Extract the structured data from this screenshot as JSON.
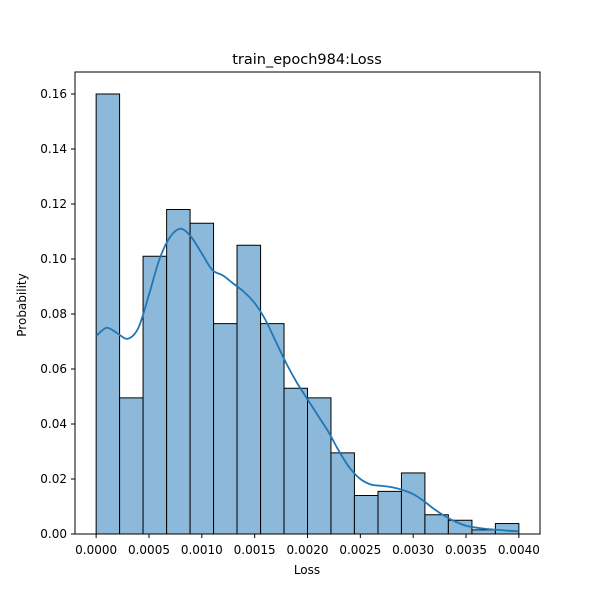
{
  "chart_data": {
    "type": "bar",
    "title": "train_epoch984:Loss",
    "xlabel": "Loss",
    "ylabel": "Probability",
    "xlim": [
      -0.0002,
      0.0042
    ],
    "ylim": [
      0,
      0.168
    ],
    "x_ticks": [
      0.0,
      0.0005,
      0.001,
      0.0015,
      0.002,
      0.0025,
      0.003,
      0.0035,
      0.004
    ],
    "x_tick_labels": [
      "0.0000",
      "0.0005",
      "0.0010",
      "0.0015",
      "0.0020",
      "0.0025",
      "0.0030",
      "0.0035",
      "0.0040"
    ],
    "y_ticks": [
      0.0,
      0.02,
      0.04,
      0.06,
      0.08,
      0.1,
      0.12,
      0.14,
      0.16
    ],
    "y_tick_labels": [
      "0.00",
      "0.02",
      "0.04",
      "0.06",
      "0.08",
      "0.10",
      "0.12",
      "0.14",
      "0.16"
    ],
    "bin_edges": [
      0.0,
      0.000222,
      0.000444,
      0.000667,
      0.000889,
      0.001111,
      0.001333,
      0.001556,
      0.001778,
      0.002,
      0.002222,
      0.002444,
      0.002667,
      0.002889,
      0.003111,
      0.003333,
      0.003556,
      0.003778,
      0.004
    ],
    "values": [
      0.16,
      0.0495,
      0.101,
      0.118,
      0.113,
      0.0765,
      0.105,
      0.0765,
      0.053,
      0.0495,
      0.0295,
      0.014,
      0.0155,
      0.0222,
      0.007,
      0.005,
      0.0015,
      0.0038
    ],
    "kde": {
      "x": [
        0.0,
        0.0001,
        0.0002,
        0.0003,
        0.0004,
        0.0005,
        0.0006,
        0.0007,
        0.0008,
        0.0009,
        0.001,
        0.0011,
        0.0012,
        0.0013,
        0.0014,
        0.0015,
        0.0016,
        0.0017,
        0.0018,
        0.0019,
        0.002,
        0.0021,
        0.0022,
        0.0023,
        0.0024,
        0.0025,
        0.0026,
        0.0027,
        0.0028,
        0.0029,
        0.003,
        0.0031,
        0.0032,
        0.0033,
        0.0034,
        0.0035,
        0.0036,
        0.0037,
        0.0038,
        0.0039,
        0.004
      ],
      "y": [
        0.072,
        0.075,
        0.073,
        0.071,
        0.075,
        0.087,
        0.1,
        0.108,
        0.111,
        0.108,
        0.102,
        0.096,
        0.094,
        0.091,
        0.088,
        0.084,
        0.078,
        0.07,
        0.062,
        0.055,
        0.049,
        0.043,
        0.037,
        0.03,
        0.024,
        0.02,
        0.018,
        0.0175,
        0.017,
        0.016,
        0.0145,
        0.012,
        0.009,
        0.0065,
        0.0045,
        0.003,
        0.0023,
        0.0018,
        0.0015,
        0.0012,
        0.001
      ]
    },
    "colors": {
      "bar_fill": "#8cb9d9",
      "bar_edge": "#000000",
      "kde_line": "#1f77b4"
    },
    "grid": false,
    "legend": "none"
  }
}
